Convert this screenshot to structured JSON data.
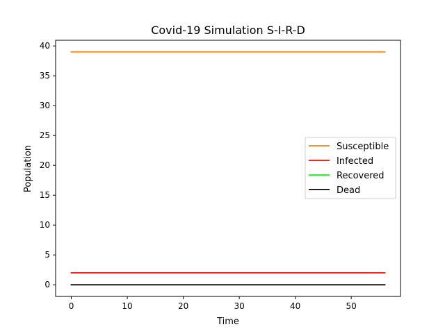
{
  "chart_data": {
    "type": "line",
    "title": "Covid-19 Simulation S-I-R-D",
    "xlabel": "Time",
    "ylabel": "Population",
    "xlim": [
      -2.8,
      58.8
    ],
    "ylim": [
      -1.95,
      40.95
    ],
    "xticks": [
      0,
      10,
      20,
      30,
      40,
      50
    ],
    "yticks": [
      0,
      5,
      10,
      15,
      20,
      25,
      30,
      35,
      40
    ],
    "grid": false,
    "legend_position": "center-right",
    "series": [
      {
        "name": "Susceptible",
        "color": "#ff7f0e",
        "x": [
          0,
          56
        ],
        "y": [
          39,
          39
        ]
      },
      {
        "name": "Infected",
        "color": "#ff0000",
        "x": [
          0,
          56
        ],
        "y": [
          2,
          2
        ]
      },
      {
        "name": "Recovered",
        "color": "#00ff00",
        "x": [
          0,
          56
        ],
        "y": [
          0,
          0
        ]
      },
      {
        "name": "Dead",
        "color": "#000000",
        "x": [
          0,
          56
        ],
        "y": [
          0,
          0
        ]
      }
    ]
  }
}
